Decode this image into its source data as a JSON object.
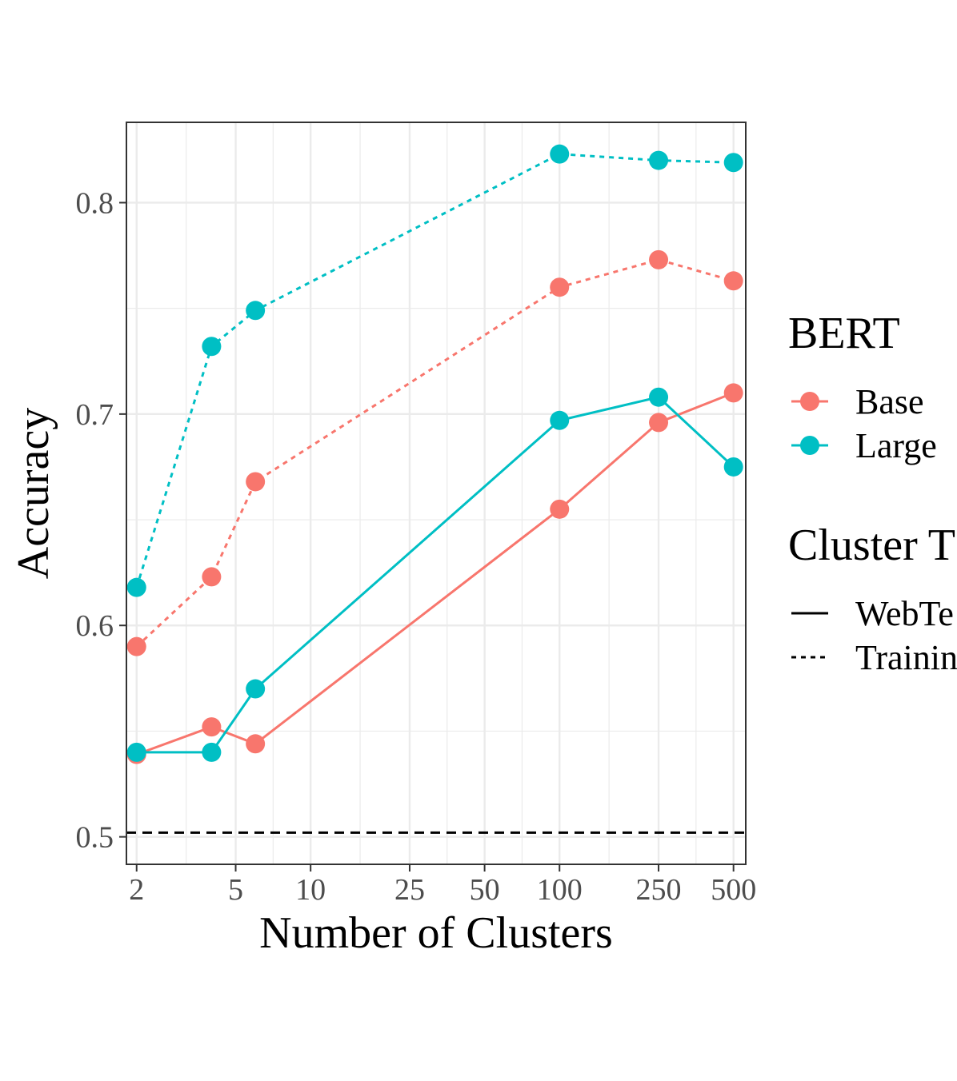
{
  "chart_data": {
    "type": "line",
    "xlabel": "Number of Clusters",
    "ylabel": "Accuracy",
    "x_scale": "log10",
    "xlim": [
      1.82,
      560
    ],
    "ylim": [
      0.487,
      0.838
    ],
    "x_ticks": [
      2,
      5,
      10,
      25,
      50,
      100,
      250,
      500
    ],
    "x_tick_labels": [
      "2",
      "5",
      "10",
      "25",
      "50",
      "100",
      "250",
      "500"
    ],
    "y_ticks": [
      0.5,
      0.6,
      0.7,
      0.8
    ],
    "y_tick_labels": [
      "0.5",
      "0.6",
      "0.7",
      "0.8"
    ],
    "grid": true,
    "baseline": {
      "y": 0.502,
      "style": "dashed",
      "color": "#000000"
    },
    "series": [
      {
        "name": "Base",
        "bert": "Base",
        "cluster_type": "WebTe",
        "linestyle": "solid",
        "color": "#F8766D",
        "x": [
          2,
          4,
          6,
          100,
          250,
          500
        ],
        "y": [
          0.539,
          0.552,
          0.544,
          0.655,
          0.696,
          0.71
        ]
      },
      {
        "name": "Large",
        "bert": "Large",
        "cluster_type": "WebTe",
        "linestyle": "solid",
        "color": "#00BFC4",
        "x": [
          2,
          4,
          6,
          100,
          250,
          500
        ],
        "y": [
          0.54,
          0.54,
          0.57,
          0.697,
          0.708,
          0.675
        ]
      },
      {
        "name": "Base",
        "bert": "Base",
        "cluster_type": "Trainin",
        "linestyle": "dashed",
        "color": "#F8766D",
        "x": [
          2,
          4,
          6,
          100,
          250,
          500
        ],
        "y": [
          0.59,
          0.623,
          0.668,
          0.76,
          0.773,
          0.763
        ]
      },
      {
        "name": "Large",
        "bert": "Large",
        "cluster_type": "Trainin",
        "linestyle": "dashed",
        "color": "#00BFC4",
        "x": [
          2,
          4,
          6,
          100,
          250,
          500
        ],
        "y": [
          0.618,
          0.732,
          0.749,
          0.823,
          0.82,
          0.819
        ]
      }
    ],
    "legend": {
      "placement": "right",
      "groups": [
        {
          "title": "BERT",
          "entries": [
            {
              "label": "Base",
              "color": "#F8766D",
              "kind": "point"
            },
            {
              "label": "Large",
              "color": "#00BFC4",
              "kind": "point"
            }
          ]
        },
        {
          "title": "Cluster T",
          "entries": [
            {
              "label": "WebTe",
              "linestyle": "solid",
              "kind": "line"
            },
            {
              "label": "Trainin",
              "linestyle": "dashed",
              "kind": "line"
            }
          ]
        }
      ]
    }
  }
}
